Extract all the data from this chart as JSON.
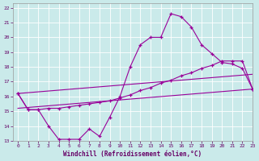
{
  "xlabel": "Windchill (Refroidissement éolien,°C)",
  "xlim": [
    -0.5,
    23
  ],
  "ylim": [
    13,
    22.3
  ],
  "xticks": [
    0,
    1,
    2,
    3,
    4,
    5,
    6,
    7,
    8,
    9,
    10,
    11,
    12,
    13,
    14,
    15,
    16,
    17,
    18,
    19,
    20,
    21,
    22,
    23
  ],
  "yticks": [
    13,
    14,
    15,
    16,
    17,
    18,
    19,
    20,
    21,
    22
  ],
  "bg_color": "#caeaea",
  "line_color": "#990099",
  "grid_color": "#ffffff",
  "line1_x": [
    0,
    1,
    2,
    3,
    4,
    5,
    6,
    7,
    8,
    9,
    10,
    11,
    12,
    13,
    14,
    15,
    16,
    17,
    18,
    19,
    20,
    21,
    22,
    23
  ],
  "line1_y": [
    16.2,
    15.1,
    15.1,
    14.0,
    13.1,
    13.1,
    13.1,
    13.8,
    13.3,
    14.6,
    16.0,
    18.0,
    19.5,
    20.0,
    20.0,
    21.6,
    21.4,
    20.7,
    19.5,
    18.9,
    18.3,
    18.2,
    17.9,
    16.5
  ],
  "line2_x": [
    0,
    1,
    2,
    3,
    4,
    5,
    6,
    7,
    8,
    9,
    10,
    11,
    12,
    13,
    14,
    15,
    16,
    17,
    18,
    19,
    20,
    21,
    22,
    23
  ],
  "line2_y": [
    16.2,
    15.1,
    15.1,
    15.2,
    15.2,
    15.3,
    15.4,
    15.5,
    15.6,
    15.7,
    15.9,
    16.1,
    16.4,
    16.6,
    16.9,
    17.1,
    17.4,
    17.6,
    17.9,
    18.1,
    18.4,
    18.4,
    18.4,
    16.5
  ],
  "line3_x": [
    0,
    23
  ],
  "line3_y": [
    16.2,
    17.5
  ],
  "line4_x": [
    0,
    23
  ],
  "line4_y": [
    15.2,
    16.5
  ]
}
